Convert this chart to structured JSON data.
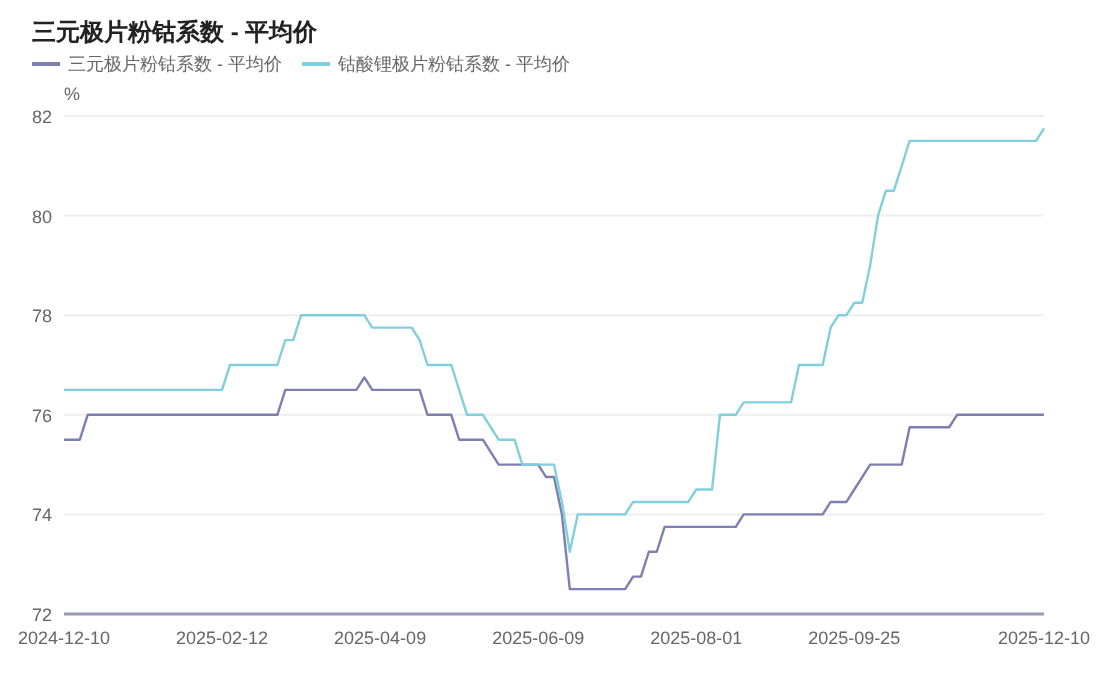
{
  "chart_data": {
    "type": "line",
    "title": "三元极片粉钴系数 - 平均价",
    "ylabel": "%",
    "categories": [
      "2024-12-10",
      null,
      null,
      null,
      null,
      null,
      null,
      null,
      null,
      null,
      null,
      null,
      null,
      null,
      null,
      null,
      null,
      null,
      null,
      null,
      "2025-02-12",
      null,
      null,
      null,
      null,
      null,
      null,
      null,
      null,
      null,
      null,
      null,
      null,
      null,
      null,
      null,
      null,
      null,
      null,
      null,
      "2025-04-09",
      null,
      null,
      null,
      null,
      null,
      null,
      null,
      null,
      null,
      null,
      null,
      null,
      null,
      null,
      null,
      null,
      null,
      null,
      null,
      "2025-06-09",
      null,
      null,
      null,
      null,
      null,
      null,
      null,
      null,
      null,
      null,
      null,
      null,
      null,
      null,
      null,
      null,
      null,
      null,
      null,
      "2025-08-01",
      null,
      null,
      null,
      null,
      null,
      null,
      null,
      null,
      null,
      null,
      null,
      null,
      null,
      null,
      null,
      null,
      null,
      null,
      null,
      "2025-09-25",
      null,
      null,
      null,
      null,
      null,
      null,
      null,
      null,
      null,
      null,
      null,
      null,
      null,
      null,
      null,
      null,
      null,
      null,
      null,
      null,
      null,
      null,
      null,
      "2025-12-10"
    ],
    "series": [
      {
        "name": "三元极片粉钴系数 - 平均价",
        "color": "#7c7fb0",
        "values": [
          75.5,
          75.5,
          75.5,
          76,
          76,
          76,
          76,
          76,
          76,
          76,
          76,
          76,
          76,
          76,
          76,
          76,
          76,
          76,
          76,
          76,
          76,
          76,
          76,
          76,
          76,
          76,
          76,
          76,
          76.5,
          76.5,
          76.5,
          76.5,
          76.5,
          76.5,
          76.5,
          76.5,
          76.5,
          76.5,
          76.75,
          76.5,
          76.5,
          76.5,
          76.5,
          76.5,
          76.5,
          76.5,
          76,
          76,
          76,
          76,
          75.5,
          75.5,
          75.5,
          75.5,
          75.25,
          75,
          75,
          75,
          75,
          75,
          75,
          74.75,
          74.75,
          74,
          72.5,
          72.5,
          72.5,
          72.5,
          72.5,
          72.5,
          72.5,
          72.5,
          72.75,
          72.75,
          73.25,
          73.25,
          73.75,
          73.75,
          73.75,
          73.75,
          73.75,
          73.75,
          73.75,
          73.75,
          73.75,
          73.75,
          74,
          74,
          74,
          74,
          74,
          74,
          74,
          74,
          74,
          74,
          74,
          74.25,
          74.25,
          74.25,
          74.5,
          74.75,
          75,
          75,
          75,
          75,
          75,
          75.75,
          75.75,
          75.75,
          75.75,
          75.75,
          75.75,
          76,
          76,
          76,
          76,
          76,
          76,
          76,
          76,
          76,
          76,
          76,
          76
        ]
      },
      {
        "name": "钴酸锂极片粉钴系数 - 平均价",
        "color": "#80cfdc",
        "values": [
          76.5,
          76.5,
          76.5,
          76.5,
          76.5,
          76.5,
          76.5,
          76.5,
          76.5,
          76.5,
          76.5,
          76.5,
          76.5,
          76.5,
          76.5,
          76.5,
          76.5,
          76.5,
          76.5,
          76.5,
          76.5,
          77,
          77,
          77,
          77,
          77,
          77,
          77,
          77.5,
          77.5,
          78,
          78,
          78,
          78,
          78,
          78,
          78,
          78,
          78,
          77.75,
          77.75,
          77.75,
          77.75,
          77.75,
          77.75,
          77.5,
          77,
          77,
          77,
          77,
          76.5,
          76,
          76,
          76,
          75.75,
          75.5,
          75.5,
          75.5,
          75,
          75,
          75,
          75,
          75,
          74.25,
          73.25,
          74,
          74,
          74,
          74,
          74,
          74,
          74,
          74.25,
          74.25,
          74.25,
          74.25,
          74.25,
          74.25,
          74.25,
          74.25,
          74.5,
          74.5,
          74.5,
          76,
          76,
          76,
          76.25,
          76.25,
          76.25,
          76.25,
          76.25,
          76.25,
          76.25,
          77,
          77,
          77,
          77,
          77.75,
          78,
          78,
          78.25,
          78.25,
          79,
          80,
          80.5,
          80.5,
          81,
          81.5,
          81.5,
          81.5,
          81.5,
          81.5,
          81.5,
          81.5,
          81.5,
          81.5,
          81.5,
          81.5,
          81.5,
          81.5,
          81.5,
          81.5,
          81.5,
          81.5,
          81.75
        ]
      }
    ],
    "ylim": [
      72,
      82
    ],
    "yticks": [
      72,
      74,
      76,
      78,
      80,
      82
    ],
    "grid": "y",
    "legend": "top left"
  }
}
